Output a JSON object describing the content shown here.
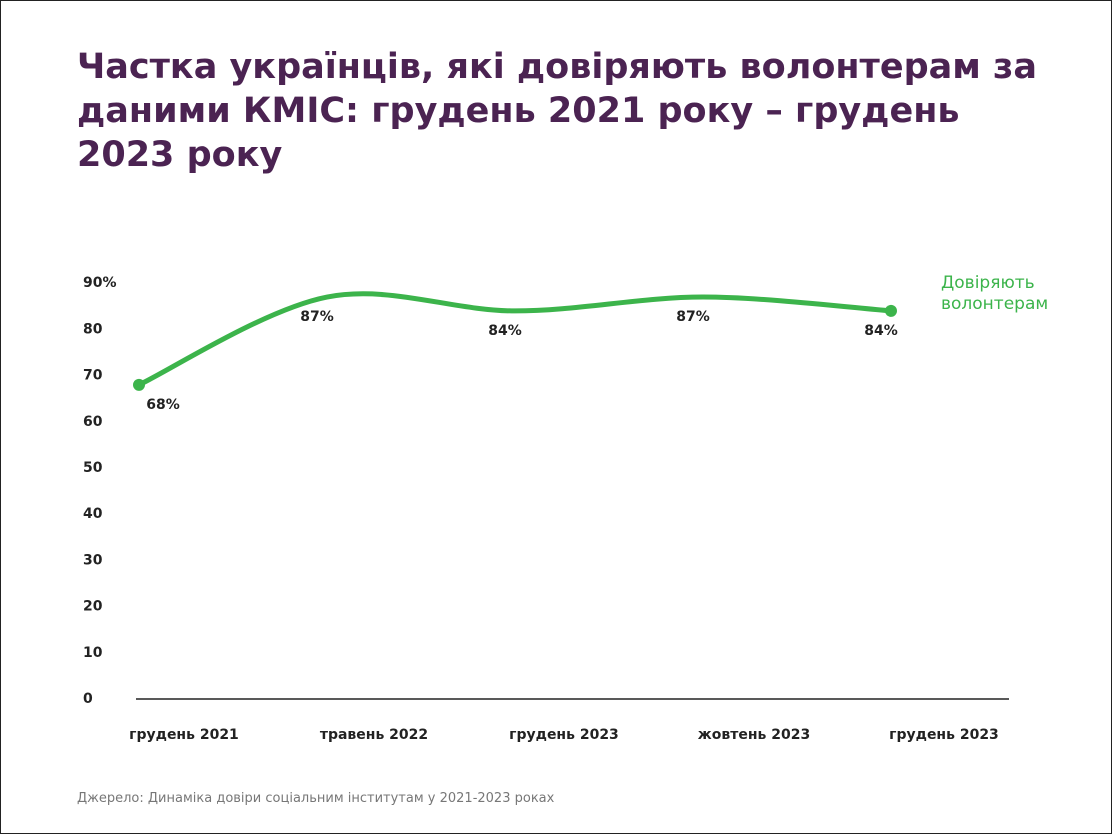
{
  "chart_data": {
    "type": "line",
    "title": "Частка українців, які довіряють волонтерам за даними КМІС: грудень 2021 року – грудень 2023 року",
    "categories": [
      "грудень 2021",
      "травень 2022",
      "грудень 2023",
      "жовтень 2023",
      "грудень 2023"
    ],
    "series": [
      {
        "name": "Довіряють волонтерам",
        "color": "#3cb44b",
        "values": [
          68,
          87,
          84,
          87,
          84
        ],
        "value_labels": [
          "68%",
          "87%",
          "84%",
          "87%",
          "84%"
        ]
      }
    ],
    "ylim": [
      0,
      100
    ],
    "yticks": [
      0,
      10,
      20,
      30,
      40,
      50,
      60,
      70,
      80,
      {
        "value": 90,
        "label": "90%"
      }
    ],
    "source": "Джерело: Динаміка довіри соціальним інститутам у 2021-2023 роках"
  }
}
